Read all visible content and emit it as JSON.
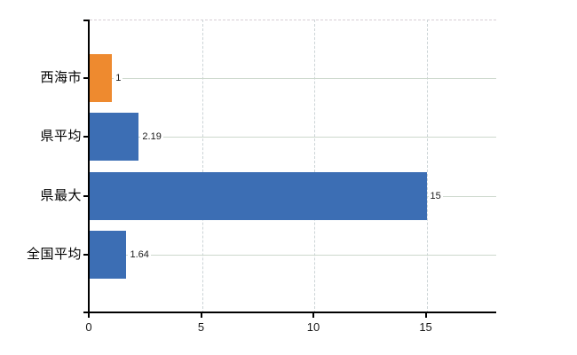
{
  "chart_data": {
    "type": "bar",
    "orientation": "horizontal",
    "title": "",
    "categories": [
      "西海市",
      "県平均",
      "県最大",
      "全国平均"
    ],
    "values": [
      1,
      2.19,
      15,
      1.64
    ],
    "value_labels": [
      "1",
      "2.19",
      "15",
      "1.64"
    ],
    "bar_colors": [
      "#ee8a2f",
      "#3c6eb4",
      "#3c6eb4",
      "#3c6eb4"
    ],
    "x_ticks": [
      0,
      5,
      10,
      15
    ],
    "x_tick_labels": [
      "0",
      "5",
      "10",
      "15"
    ],
    "xlim": [
      0,
      18.1
    ],
    "grid": {
      "vertical_lines": "dashed",
      "horizontal_lines": "solid",
      "top_border": "dashed"
    },
    "legend": "none"
  },
  "colors": {
    "bar_blue": "#3c6eb4",
    "bar_orange": "#ee8a2f",
    "axis": "#000000",
    "gridline_horizontal": "#cdd8cd",
    "gridline_vertical": "#ccd4d6",
    "top_border": "#d6ced4",
    "text": "#000000",
    "background": "#ffffff"
  }
}
